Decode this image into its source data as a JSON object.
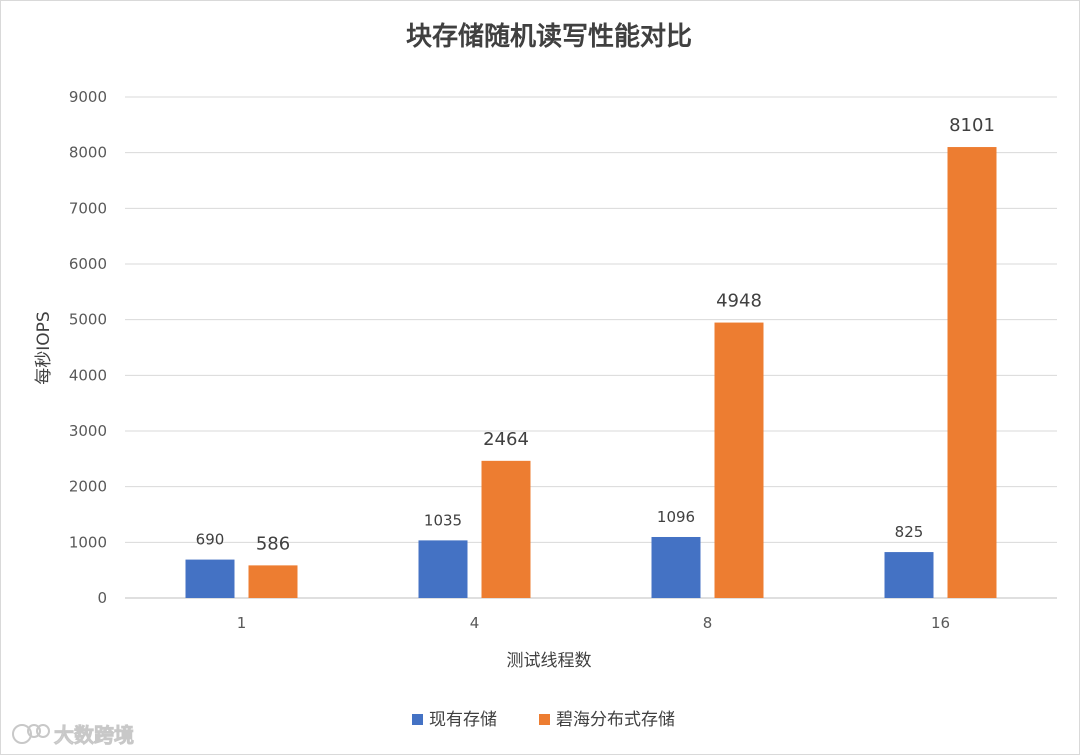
{
  "chart_data": {
    "type": "bar",
    "title": "块存储随机读写性能对比",
    "xlabel": "测试线程数",
    "ylabel": "每秒IOPS",
    "categories": [
      "1",
      "4",
      "8",
      "16"
    ],
    "series": [
      {
        "name": "现有存储",
        "values": [
          690,
          1035,
          1096,
          825
        ],
        "color": "#4472c4"
      },
      {
        "name": "碧海分布式存储",
        "values": [
          586,
          2464,
          4948,
          8101
        ],
        "color": "#ed7d31"
      }
    ],
    "ylim": [
      0,
      9000
    ],
    "yticks": [
      0,
      1000,
      2000,
      3000,
      4000,
      5000,
      6000,
      7000,
      8000,
      9000
    ],
    "grid": true,
    "legend": "bottom"
  },
  "watermark": "大数跨境"
}
